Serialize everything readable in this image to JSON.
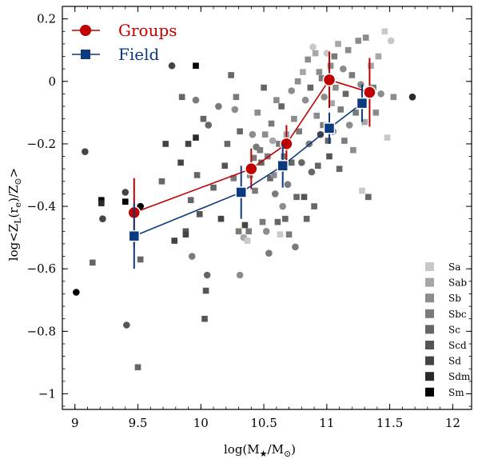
{
  "chart_data": {
    "type": "scatter",
    "xlabel_parts": {
      "pre": "log(M",
      "sub": "★",
      "mid": "/M",
      "sub2": "⊙",
      "post": ")"
    },
    "ylabel_parts": {
      "pre": "log<Z",
      "sub": "L",
      "mid": "(r",
      "sub2": "e",
      "mid2": ")/Z",
      "sub3": "⊙",
      "post": ">"
    },
    "xlim": [
      8.9,
      12.15
    ],
    "ylim": [
      -1.05,
      0.24
    ],
    "xticks": [
      9,
      9.5,
      10,
      10.5,
      11,
      11.5,
      12
    ],
    "xtick_labels": [
      "9",
      "9.5",
      "10",
      "10.5",
      "11",
      "11.5",
      "12"
    ],
    "yticks": [
      0.2,
      0,
      -0.2,
      -0.4,
      -0.6,
      -0.8,
      -1
    ],
    "ytick_labels": [
      "0.2",
      "0",
      "−0.2",
      "−0.4",
      "−0.6",
      "−0.8",
      "−1"
    ],
    "grid": false,
    "legend_main": [
      {
        "label": "Groups",
        "color": "#c00000",
        "marker": "circle"
      },
      {
        "label": "Field",
        "color": "#0a3a80",
        "marker": "square"
      }
    ],
    "legend_types": [
      {
        "label": "Sa",
        "color": "#c8c8c8"
      },
      {
        "label": "Sab",
        "color": "#a6a6a6"
      },
      {
        "label": "Sb",
        "color": "#8c8c8c"
      },
      {
        "label": "Sbc",
        "color": "#7a7a7a"
      },
      {
        "label": "Sc",
        "color": "#666666"
      },
      {
        "label": "Scd",
        "color": "#555555"
      },
      {
        "label": "Sd",
        "color": "#444444"
      },
      {
        "label": "Sdm",
        "color": "#2a2a2a"
      },
      {
        "label": "Sm",
        "color": "#000000"
      }
    ],
    "binned_series": [
      {
        "name": "Groups",
        "color": "#c00000",
        "marker": "circle",
        "x": [
          9.47,
          10.4,
          10.68,
          11.02,
          11.34
        ],
        "y": [
          -0.42,
          -0.28,
          -0.2,
          0.005,
          -0.035
        ],
        "yerr": [
          0.11,
          0.065,
          0.06,
          0.09,
          0.11
        ]
      },
      {
        "name": "Field",
        "color": "#0a3a80",
        "marker": "square",
        "x": [
          9.47,
          10.32,
          10.65,
          11.02,
          11.28
        ],
        "y": [
          -0.495,
          -0.355,
          -0.27,
          -0.15,
          -0.07
        ],
        "yerr": [
          0.105,
          0.085,
          0.07,
          0.05,
          0.06
        ]
      }
    ],
    "scatter_points": [
      {
        "x": 9.01,
        "y": -0.675,
        "m": "c",
        "c": "#000000"
      },
      {
        "x": 9.08,
        "y": -0.225,
        "m": "c",
        "c": "#444444"
      },
      {
        "x": 9.14,
        "y": -0.58,
        "m": "s",
        "c": "#666666"
      },
      {
        "x": 9.21,
        "y": -0.38,
        "m": "s",
        "c": "#000000"
      },
      {
        "x": 9.21,
        "y": -0.39,
        "m": "s",
        "c": "#2a2a2a"
      },
      {
        "x": 9.22,
        "y": -0.44,
        "m": "c",
        "c": "#444444"
      },
      {
        "x": 9.4,
        "y": -0.355,
        "m": "c",
        "c": "#444444"
      },
      {
        "x": 9.41,
        "y": -0.78,
        "m": "c",
        "c": "#555555"
      },
      {
        "x": 9.4,
        "y": -0.385,
        "m": "s",
        "c": "#000000"
      },
      {
        "x": 9.52,
        "y": -0.4,
        "m": "c",
        "c": "#000000"
      },
      {
        "x": 9.52,
        "y": -0.57,
        "m": "s",
        "c": "#666666"
      },
      {
        "x": 9.5,
        "y": -0.915,
        "m": "s",
        "c": "#666666"
      },
      {
        "x": 9.69,
        "y": -0.32,
        "m": "s",
        "c": "#666666"
      },
      {
        "x": 9.72,
        "y": -0.2,
        "m": "s",
        "c": "#444444"
      },
      {
        "x": 9.79,
        "y": -0.51,
        "m": "s",
        "c": "#444444"
      },
      {
        "x": 9.77,
        "y": 0.05,
        "m": "c",
        "c": "#444444"
      },
      {
        "x": 9.84,
        "y": -0.26,
        "m": "s",
        "c": "#444444"
      },
      {
        "x": 9.85,
        "y": -0.05,
        "m": "s",
        "c": "#666666"
      },
      {
        "x": 9.9,
        "y": -0.2,
        "m": "s",
        "c": "#444444"
      },
      {
        "x": 9.88,
        "y": -0.48,
        "m": "s",
        "c": "#555555"
      },
      {
        "x": 9.92,
        "y": -0.38,
        "m": "s",
        "c": "#666666"
      },
      {
        "x": 9.96,
        "y": -0.18,
        "m": "s",
        "c": "#2a2a2a"
      },
      {
        "x": 9.96,
        "y": -0.06,
        "m": "c",
        "c": "#7a7a7a"
      },
      {
        "x": 9.96,
        "y": 0.05,
        "m": "s",
        "c": "#000000"
      },
      {
        "x": 9.97,
        "y": -0.3,
        "m": "s",
        "c": "#666666"
      },
      {
        "x": 9.99,
        "y": -0.425,
        "m": "s",
        "c": "#555555"
      },
      {
        "x": 9.88,
        "y": -0.49,
        "m": "s",
        "c": "#444444"
      },
      {
        "x": 9.93,
        "y": -0.56,
        "m": "c",
        "c": "#7a7a7a"
      },
      {
        "x": 10.05,
        "y": -0.62,
        "m": "c",
        "c": "#666666"
      },
      {
        "x": 10.04,
        "y": -0.67,
        "m": "s",
        "c": "#555555"
      },
      {
        "x": 10.03,
        "y": -0.76,
        "m": "s",
        "c": "#555555"
      },
      {
        "x": 10.02,
        "y": -0.12,
        "m": "s",
        "c": "#666666"
      },
      {
        "x": 10.06,
        "y": -0.14,
        "m": "c",
        "c": "#666666"
      },
      {
        "x": 10.1,
        "y": -0.34,
        "m": "s",
        "c": "#666666"
      },
      {
        "x": 10.16,
        "y": -0.44,
        "m": "s",
        "c": "#444444"
      },
      {
        "x": 10.14,
        "y": -0.08,
        "m": "c",
        "c": "#7a7a7a"
      },
      {
        "x": 10.19,
        "y": -0.27,
        "m": "s",
        "c": "#555555"
      },
      {
        "x": 10.21,
        "y": -0.2,
        "m": "s",
        "c": "#666666"
      },
      {
        "x": 10.24,
        "y": 0.02,
        "m": "s",
        "c": "#666666"
      },
      {
        "x": 10.26,
        "y": -0.31,
        "m": "s",
        "c": "#7a7a7a"
      },
      {
        "x": 10.27,
        "y": -0.09,
        "m": "c",
        "c": "#8c8c8c"
      },
      {
        "x": 10.28,
        "y": -0.05,
        "m": "s",
        "c": "#7a7a7a"
      },
      {
        "x": 10.3,
        "y": -0.48,
        "m": "s",
        "c": "#7a7a7a"
      },
      {
        "x": 10.31,
        "y": -0.16,
        "m": "s",
        "c": "#666666"
      },
      {
        "x": 10.31,
        "y": -0.62,
        "m": "c",
        "c": "#8c8c8c"
      },
      {
        "x": 10.33,
        "y": -0.35,
        "m": "s",
        "c": "#555555"
      },
      {
        "x": 10.34,
        "y": -0.5,
        "m": "c",
        "c": "#a6a6a6"
      },
      {
        "x": 10.35,
        "y": -0.46,
        "m": "s",
        "c": "#444444"
      },
      {
        "x": 10.37,
        "y": -0.51,
        "m": "s",
        "c": "#c8c8c8"
      },
      {
        "x": 10.38,
        "y": -0.48,
        "m": "s",
        "c": "#7a7a7a"
      },
      {
        "x": 10.39,
        "y": -0.3,
        "m": "s",
        "c": "#8c8c8c"
      },
      {
        "x": 10.41,
        "y": -0.17,
        "m": "c",
        "c": "#8c8c8c"
      },
      {
        "x": 10.42,
        "y": -0.245,
        "m": "s",
        "c": "#7a7a7a"
      },
      {
        "x": 10.43,
        "y": -0.35,
        "m": "s",
        "c": "#7a7a7a"
      },
      {
        "x": 10.44,
        "y": -0.21,
        "m": "c",
        "c": "#7a7a7a"
      },
      {
        "x": 10.45,
        "y": -0.1,
        "m": "s",
        "c": "#8c8c8c"
      },
      {
        "x": 10.47,
        "y": -0.22,
        "m": "s",
        "c": "#7a7a7a"
      },
      {
        "x": 10.48,
        "y": -0.26,
        "m": "s",
        "c": "#666666"
      },
      {
        "x": 10.49,
        "y": -0.45,
        "m": "s",
        "c": "#7a7a7a"
      },
      {
        "x": 10.5,
        "y": -0.02,
        "m": "s",
        "c": "#666666"
      },
      {
        "x": 10.51,
        "y": -0.17,
        "m": "s",
        "c": "#8c8c8c"
      },
      {
        "x": 10.52,
        "y": -0.48,
        "m": "c",
        "c": "#8c8c8c"
      },
      {
        "x": 10.53,
        "y": -0.24,
        "m": "s",
        "c": "#7a7a7a"
      },
      {
        "x": 10.54,
        "y": -0.55,
        "m": "c",
        "c": "#7a7a7a"
      },
      {
        "x": 10.55,
        "y": -0.31,
        "m": "s",
        "c": "#666666"
      },
      {
        "x": 10.56,
        "y": -0.135,
        "m": "s",
        "c": "#7a7a7a"
      },
      {
        "x": 10.57,
        "y": -0.19,
        "m": "c",
        "c": "#a6a6a6"
      },
      {
        "x": 10.58,
        "y": -0.3,
        "m": "s",
        "c": "#8c8c8c"
      },
      {
        "x": 10.59,
        "y": -0.36,
        "m": "c",
        "c": "#7a7a7a"
      },
      {
        "x": 10.6,
        "y": -0.06,
        "m": "s",
        "c": "#8c8c8c"
      },
      {
        "x": 10.61,
        "y": -0.45,
        "m": "s",
        "c": "#666666"
      },
      {
        "x": 10.62,
        "y": -0.2,
        "m": "s",
        "c": "#7a7a7a"
      },
      {
        "x": 10.63,
        "y": -0.49,
        "m": "s",
        "c": "#c8c8c8"
      },
      {
        "x": 10.64,
        "y": -0.08,
        "m": "s",
        "c": "#666666"
      },
      {
        "x": 10.65,
        "y": -0.4,
        "m": "c",
        "c": "#8c8c8c"
      },
      {
        "x": 10.66,
        "y": -0.24,
        "m": "s",
        "c": "#7a7a7a"
      },
      {
        "x": 10.67,
        "y": -0.44,
        "m": "s",
        "c": "#666666"
      },
      {
        "x": 10.68,
        "y": -0.17,
        "m": "s",
        "c": "#a6a6a6"
      },
      {
        "x": 10.69,
        "y": -0.33,
        "m": "c",
        "c": "#7a7a7a"
      },
      {
        "x": 10.7,
        "y": -0.49,
        "m": "s",
        "c": "#7a7a7a"
      },
      {
        "x": 10.72,
        "y": -0.03,
        "m": "c",
        "c": "#8c8c8c"
      },
      {
        "x": 10.72,
        "y": -0.26,
        "m": "s",
        "c": "#666666"
      },
      {
        "x": 10.74,
        "y": -0.12,
        "m": "s",
        "c": "#8c8c8c"
      },
      {
        "x": 10.75,
        "y": -0.53,
        "m": "c",
        "c": "#7a7a7a"
      },
      {
        "x": 10.76,
        "y": -0.37,
        "m": "s",
        "c": "#666666"
      },
      {
        "x": 10.77,
        "y": 0.0,
        "m": "s",
        "c": "#8c8c8c"
      },
      {
        "x": 10.78,
        "y": -0.16,
        "m": "s",
        "c": "#7a7a7a"
      },
      {
        "x": 10.8,
        "y": -0.26,
        "m": "c",
        "c": "#666666"
      },
      {
        "x": 10.81,
        "y": 0.03,
        "m": "s",
        "c": "#a6a6a6"
      },
      {
        "x": 10.82,
        "y": -0.37,
        "m": "s",
        "c": "#555555"
      },
      {
        "x": 10.83,
        "y": -0.06,
        "m": "c",
        "c": "#8c8c8c"
      },
      {
        "x": 10.84,
        "y": -0.44,
        "m": "s",
        "c": "#666666"
      },
      {
        "x": 10.85,
        "y": 0.07,
        "m": "s",
        "c": "#8c8c8c"
      },
      {
        "x": 10.86,
        "y": -0.2,
        "m": "c",
        "c": "#7a7a7a"
      },
      {
        "x": 10.87,
        "y": -0.02,
        "m": "s",
        "c": "#666666"
      },
      {
        "x": 10.88,
        "y": -0.29,
        "m": "c",
        "c": "#666666"
      },
      {
        "x": 10.89,
        "y": 0.11,
        "m": "c",
        "c": "#c8c8c8"
      },
      {
        "x": 10.9,
        "y": -0.4,
        "m": "s",
        "c": "#666666"
      },
      {
        "x": 10.91,
        "y": 0.09,
        "m": "s",
        "c": "#a6a6a6"
      },
      {
        "x": 10.92,
        "y": -0.11,
        "m": "s",
        "c": "#8c8c8c"
      },
      {
        "x": 10.93,
        "y": -0.27,
        "m": "s",
        "c": "#666666"
      },
      {
        "x": 10.94,
        "y": 0.03,
        "m": "s",
        "c": "#8c8c8c"
      },
      {
        "x": 10.95,
        "y": -0.17,
        "m": "c",
        "c": "#444444"
      },
      {
        "x": 10.96,
        "y": 0.01,
        "m": "s",
        "c": "#7a7a7a"
      },
      {
        "x": 10.97,
        "y": -0.14,
        "m": "s",
        "c": "#7a7a7a"
      },
      {
        "x": 10.98,
        "y": -0.05,
        "m": "c",
        "c": "#8c8c8c"
      },
      {
        "x": 11.0,
        "y": 0.09,
        "m": "c",
        "c": "#c8c8c8"
      },
      {
        "x": 11.01,
        "y": -0.19,
        "m": "s",
        "c": "#666666"
      },
      {
        "x": 11.02,
        "y": -0.24,
        "m": "s",
        "c": "#555555"
      },
      {
        "x": 11.03,
        "y": 0.05,
        "m": "s",
        "c": "#8c8c8c"
      },
      {
        "x": 11.04,
        "y": -0.07,
        "m": "s",
        "c": "#a6a6a6"
      },
      {
        "x": 11.05,
        "y": -0.16,
        "m": "c",
        "c": "#7a7a7a"
      },
      {
        "x": 11.06,
        "y": 0.08,
        "m": "s",
        "c": "#7a7a7a"
      },
      {
        "x": 11.07,
        "y": -0.02,
        "m": "s",
        "c": "#8c8c8c"
      },
      {
        "x": 11.09,
        "y": 0.12,
        "m": "s",
        "c": "#a6a6a6"
      },
      {
        "x": 11.1,
        "y": -0.28,
        "m": "s",
        "c": "#666666"
      },
      {
        "x": 11.11,
        "y": -0.09,
        "m": "s",
        "c": "#7a7a7a"
      },
      {
        "x": 11.13,
        "y": 0.04,
        "m": "c",
        "c": "#8c8c8c"
      },
      {
        "x": 11.14,
        "y": -0.19,
        "m": "s",
        "c": "#7a7a7a"
      },
      {
        "x": 11.15,
        "y": -0.04,
        "m": "s",
        "c": "#666666"
      },
      {
        "x": 11.17,
        "y": 0.1,
        "m": "s",
        "c": "#8c8c8c"
      },
      {
        "x": 11.18,
        "y": -0.14,
        "m": "c",
        "c": "#8c8c8c"
      },
      {
        "x": 11.2,
        "y": 0.02,
        "m": "s",
        "c": "#7a7a7a"
      },
      {
        "x": 11.21,
        "y": -0.22,
        "m": "s",
        "c": "#8c8c8c"
      },
      {
        "x": 11.23,
        "y": -0.1,
        "m": "s",
        "c": "#7a7a7a"
      },
      {
        "x": 11.25,
        "y": 0.13,
        "m": "s",
        "c": "#8c8c8c"
      },
      {
        "x": 11.27,
        "y": -0.01,
        "m": "c",
        "c": "#8c8c8c"
      },
      {
        "x": 11.28,
        "y": -0.35,
        "m": "s",
        "c": "#c8c8c8"
      },
      {
        "x": 11.3,
        "y": -0.13,
        "m": "s",
        "c": "#a6a6a6"
      },
      {
        "x": 11.31,
        "y": 0.14,
        "m": "s",
        "c": "#8c8c8c"
      },
      {
        "x": 11.33,
        "y": -0.37,
        "m": "s",
        "c": "#666666"
      },
      {
        "x": 11.35,
        "y": 0.05,
        "m": "s",
        "c": "#a6a6a6"
      },
      {
        "x": 11.37,
        "y": -0.02,
        "m": "s",
        "c": "#7a7a7a"
      },
      {
        "x": 11.39,
        "y": -0.1,
        "m": "s",
        "c": "#8c8c8c"
      },
      {
        "x": 11.41,
        "y": 0.08,
        "m": "s",
        "c": "#a6a6a6"
      },
      {
        "x": 11.43,
        "y": -0.04,
        "m": "c",
        "c": "#8c8c8c"
      },
      {
        "x": 11.46,
        "y": 0.16,
        "m": "s",
        "c": "#c8c8c8"
      },
      {
        "x": 11.48,
        "y": -0.18,
        "m": "s",
        "c": "#c8c8c8"
      },
      {
        "x": 11.51,
        "y": 0.13,
        "m": "c",
        "c": "#c8c8c8"
      },
      {
        "x": 11.53,
        "y": -0.05,
        "m": "s",
        "c": "#8c8c8c"
      },
      {
        "x": 11.68,
        "y": -0.05,
        "m": "c",
        "c": "#2a2a2a"
      }
    ]
  }
}
